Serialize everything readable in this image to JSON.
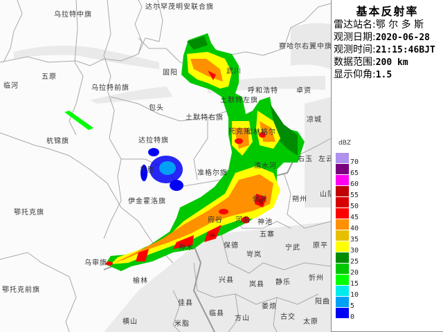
{
  "panel": {
    "title": "基本反射率",
    "station_label": "雷达站名:",
    "station": "鄂 尔 多 斯",
    "date_label": "观测日期:",
    "date": "2020-06-28",
    "time_label": "观测时间:",
    "time": "21:15:46BJT",
    "range_label": "数据范围:",
    "range": "200 km",
    "elevation_label": "显示仰角:",
    "elevation": "1.5"
  },
  "legend": {
    "unit": "dBZ",
    "items": [
      {
        "value": "70",
        "color": "#AE92EE"
      },
      {
        "value": "65",
        "color": "#7A0080"
      },
      {
        "value": "60",
        "color": "#FF00F0"
      },
      {
        "value": "55",
        "color": "#C00000"
      },
      {
        "value": "50",
        "color": "#D60000"
      },
      {
        "value": "45",
        "color": "#FF0000"
      },
      {
        "value": "40",
        "color": "#FF9000"
      },
      {
        "value": "35",
        "color": "#E6C000"
      },
      {
        "value": "30",
        "color": "#FFFF00"
      },
      {
        "value": "25",
        "color": "#008C00"
      },
      {
        "value": "20",
        "color": "#00C800"
      },
      {
        "value": "15",
        "color": "#00FF00"
      },
      {
        "value": "10",
        "color": "#00ECEC"
      },
      {
        "value": "5",
        "color": "#00A0F6"
      },
      {
        "value": "0",
        "color": "#0000F6"
      }
    ]
  },
  "places": [
    "乌拉特中旗",
    "达尔罕茂明安联合旗",
    "察哈尔右翼中旗",
    "五原",
    "临河",
    "乌拉特前旗",
    "固阳",
    "武川",
    "呼和浩特",
    "卓资",
    "包头",
    "土默特左旗",
    "土默特右旗",
    "凉城",
    "托克托",
    "和林格尔",
    "杭锦旗",
    "达拉特旗",
    "东胜",
    "准格尔旗",
    "右玉",
    "左云",
    "清水河",
    "伊金霍洛旗",
    "鄂托克旗",
    "偏关",
    "朔州",
    "山阴",
    "府谷",
    "河曲",
    "神池",
    "五寨",
    "宁武",
    "原平",
    "神木",
    "保德",
    "岢岚",
    "乌审旗",
    "榆林",
    "兴县",
    "岚县",
    "静乐",
    "忻州",
    "鄂托克前旗",
    "佳县",
    "临县",
    "阳曲",
    "方山",
    "娄烦",
    "古交",
    "太原",
    "横山",
    "米脂"
  ]
}
